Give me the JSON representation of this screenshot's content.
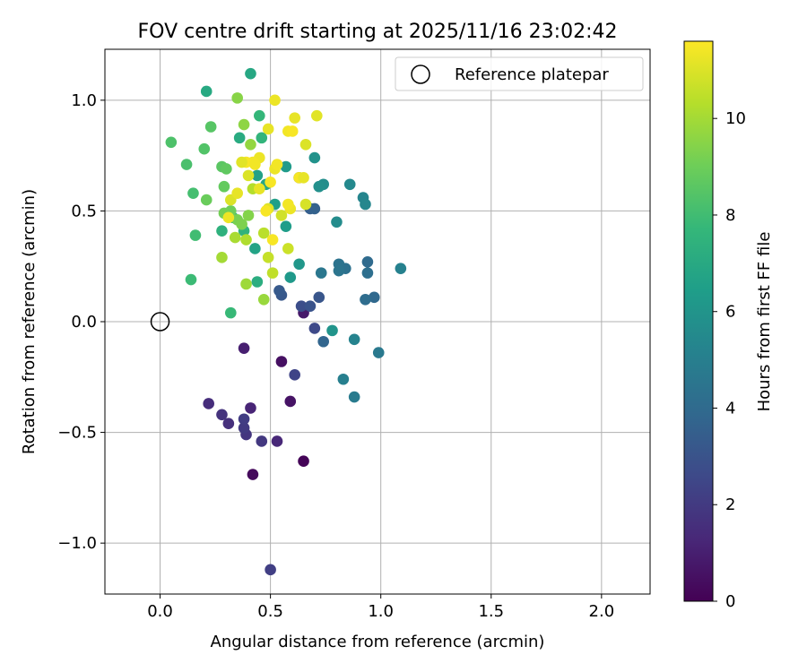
{
  "chart_data": {
    "type": "scatter",
    "title": "FOV centre drift starting at 2025/11/16 23:02:42",
    "xlabel": "Angular distance from reference (arcmin)",
    "ylabel": "Rotation from reference (arcmin)",
    "xlim": [
      -0.25,
      2.22
    ],
    "ylim": [
      -1.23,
      1.23
    ],
    "xticks": [
      0.0,
      0.5,
      1.0,
      1.5,
      2.0
    ],
    "xtick_labels": [
      "0.0",
      "0.5",
      "1.0",
      "1.5",
      "2.0"
    ],
    "yticks": [
      -1.0,
      -0.5,
      0.0,
      0.5,
      1.0
    ],
    "ytick_labels": [
      "−1.0",
      "−0.5",
      "0.0",
      "0.5",
      "1.0"
    ],
    "grid": true,
    "legend": {
      "position": "top-right",
      "label": "Reference platepar"
    },
    "reference_point": {
      "x": 0.0,
      "y": 0.0
    },
    "colorbar": {
      "label": "Hours from first FF file",
      "range": [
        0,
        11.6
      ],
      "ticks": [
        0,
        2,
        4,
        6,
        8,
        10
      ],
      "tick_labels": [
        "0",
        "2",
        "4",
        "6",
        "8",
        "10"
      ],
      "colormap": [
        "#440154",
        "#482878",
        "#3e4989",
        "#31688e",
        "#26828e",
        "#1f9e89",
        "#35b779",
        "#6ece58",
        "#b5de2b",
        "#fde725"
      ]
    },
    "points": [
      {
        "x": 0.65,
        "y": -0.63,
        "h": 0.1
      },
      {
        "x": 0.42,
        "y": -0.69,
        "h": 0.3
      },
      {
        "x": 0.55,
        "y": -0.18,
        "h": 0.5
      },
      {
        "x": 0.59,
        "y": -0.36,
        "h": 0.6
      },
      {
        "x": 0.65,
        "y": 0.04,
        "h": 0.8
      },
      {
        "x": 0.38,
        "y": -0.12,
        "h": 1.0
      },
      {
        "x": 0.41,
        "y": -0.39,
        "h": 1.2
      },
      {
        "x": 0.53,
        "y": -0.54,
        "h": 1.3
      },
      {
        "x": 0.22,
        "y": -0.37,
        "h": 1.5
      },
      {
        "x": 0.31,
        "y": -0.46,
        "h": 1.6
      },
      {
        "x": 0.28,
        "y": -0.42,
        "h": 1.7
      },
      {
        "x": 0.39,
        "y": -0.51,
        "h": 1.8
      },
      {
        "x": 0.46,
        "y": -0.54,
        "h": 1.9
      },
      {
        "x": 0.38,
        "y": -0.48,
        "h": 2.0
      },
      {
        "x": 0.38,
        "y": -0.44,
        "h": 2.1
      },
      {
        "x": 0.5,
        "y": -1.12,
        "h": 2.2
      },
      {
        "x": 0.61,
        "y": -0.24,
        "h": 2.4
      },
      {
        "x": 0.7,
        "y": -0.03,
        "h": 2.6
      },
      {
        "x": 0.64,
        "y": 0.07,
        "h": 2.8
      },
      {
        "x": 0.68,
        "y": 0.07,
        "h": 3.0
      },
      {
        "x": 0.72,
        "y": 0.11,
        "h": 3.1
      },
      {
        "x": 0.55,
        "y": 0.12,
        "h": 3.2
      },
      {
        "x": 0.54,
        "y": 0.14,
        "h": 3.3
      },
      {
        "x": 0.63,
        "y": 0.65,
        "h": 3.4
      },
      {
        "x": 0.68,
        "y": 0.51,
        "h": 3.5
      },
      {
        "x": 0.7,
        "y": 0.51,
        "h": 3.6
      },
      {
        "x": 0.74,
        "y": -0.09,
        "h": 3.8
      },
      {
        "x": 0.97,
        "y": 0.11,
        "h": 3.9
      },
      {
        "x": 0.94,
        "y": 0.27,
        "h": 4.0
      },
      {
        "x": 0.93,
        "y": 0.1,
        "h": 4.1
      },
      {
        "x": 0.94,
        "y": 0.22,
        "h": 4.2
      },
      {
        "x": 0.84,
        "y": 0.24,
        "h": 4.3
      },
      {
        "x": 0.81,
        "y": 0.26,
        "h": 4.4
      },
      {
        "x": 0.81,
        "y": 0.23,
        "h": 4.5
      },
      {
        "x": 0.73,
        "y": 0.22,
        "h": 4.6
      },
      {
        "x": 0.99,
        "y": -0.14,
        "h": 4.7
      },
      {
        "x": 0.88,
        "y": -0.34,
        "h": 4.8
      },
      {
        "x": 0.83,
        "y": -0.26,
        "h": 5.0
      },
      {
        "x": 1.09,
        "y": 0.24,
        "h": 5.1
      },
      {
        "x": 0.88,
        "y": -0.08,
        "h": 5.2
      },
      {
        "x": 0.92,
        "y": 0.56,
        "h": 5.3
      },
      {
        "x": 0.93,
        "y": 0.53,
        "h": 5.4
      },
      {
        "x": 0.86,
        "y": 0.62,
        "h": 5.5
      },
      {
        "x": 0.8,
        "y": 0.45,
        "h": 5.6
      },
      {
        "x": 0.74,
        "y": 0.62,
        "h": 5.7
      },
      {
        "x": 0.72,
        "y": 0.61,
        "h": 5.8
      },
      {
        "x": 0.7,
        "y": 0.74,
        "h": 5.9
      },
      {
        "x": 0.78,
        "y": -0.04,
        "h": 6.0
      },
      {
        "x": 0.63,
        "y": 0.26,
        "h": 6.1
      },
      {
        "x": 0.59,
        "y": 0.2,
        "h": 6.2
      },
      {
        "x": 0.57,
        "y": 0.7,
        "h": 6.3
      },
      {
        "x": 0.57,
        "y": 0.43,
        "h": 6.4
      },
      {
        "x": 0.52,
        "y": 0.53,
        "h": 6.5
      },
      {
        "x": 0.44,
        "y": 0.66,
        "h": 6.6
      },
      {
        "x": 0.43,
        "y": 0.33,
        "h": 6.7
      },
      {
        "x": 0.48,
        "y": 0.62,
        "h": 6.8
      },
      {
        "x": 0.41,
        "y": 1.12,
        "h": 6.9
      },
      {
        "x": 0.21,
        "y": 1.04,
        "h": 7.0
      },
      {
        "x": 0.36,
        "y": 0.83,
        "h": 7.1
      },
      {
        "x": 0.44,
        "y": 0.18,
        "h": 7.2
      },
      {
        "x": 0.33,
        "y": 0.47,
        "h": 7.3
      },
      {
        "x": 0.28,
        "y": 0.41,
        "h": 7.4
      },
      {
        "x": 0.38,
        "y": 0.41,
        "h": 7.5
      },
      {
        "x": 0.46,
        "y": 0.83,
        "h": 7.6
      },
      {
        "x": 0.45,
        "y": 0.93,
        "h": 7.7
      },
      {
        "x": 0.32,
        "y": 0.04,
        "h": 7.8
      },
      {
        "x": 0.14,
        "y": 0.19,
        "h": 7.9
      },
      {
        "x": 0.16,
        "y": 0.39,
        "h": 8.0
      },
      {
        "x": 0.15,
        "y": 0.58,
        "h": 8.1
      },
      {
        "x": 0.12,
        "y": 0.71,
        "h": 8.2
      },
      {
        "x": 0.05,
        "y": 0.81,
        "h": 8.3
      },
      {
        "x": 0.2,
        "y": 0.78,
        "h": 8.4
      },
      {
        "x": 0.23,
        "y": 0.88,
        "h": 8.5
      },
      {
        "x": 0.28,
        "y": 0.7,
        "h": 8.6
      },
      {
        "x": 0.3,
        "y": 0.69,
        "h": 8.7
      },
      {
        "x": 0.29,
        "y": 0.61,
        "h": 8.8
      },
      {
        "x": 0.21,
        "y": 0.55,
        "h": 8.9
      },
      {
        "x": 0.32,
        "y": 0.5,
        "h": 9.0
      },
      {
        "x": 0.29,
        "y": 0.49,
        "h": 9.1
      },
      {
        "x": 0.35,
        "y": 0.46,
        "h": 9.2
      },
      {
        "x": 0.37,
        "y": 0.44,
        "h": 9.3
      },
      {
        "x": 0.4,
        "y": 0.48,
        "h": 9.4
      },
      {
        "x": 0.35,
        "y": 1.01,
        "h": 9.5
      },
      {
        "x": 0.38,
        "y": 0.89,
        "h": 9.6
      },
      {
        "x": 0.41,
        "y": 0.8,
        "h": 9.7
      },
      {
        "x": 0.47,
        "y": 0.1,
        "h": 9.8
      },
      {
        "x": 0.39,
        "y": 0.17,
        "h": 9.9
      },
      {
        "x": 0.28,
        "y": 0.29,
        "h": 10.0
      },
      {
        "x": 0.34,
        "y": 0.38,
        "h": 10.1
      },
      {
        "x": 0.39,
        "y": 0.37,
        "h": 10.2
      },
      {
        "x": 0.42,
        "y": 0.6,
        "h": 10.3
      },
      {
        "x": 0.47,
        "y": 0.4,
        "h": 10.4
      },
      {
        "x": 0.51,
        "y": 0.22,
        "h": 10.5
      },
      {
        "x": 0.49,
        "y": 0.29,
        "h": 10.6
      },
      {
        "x": 0.58,
        "y": 0.33,
        "h": 10.7
      },
      {
        "x": 0.55,
        "y": 0.48,
        "h": 10.8
      },
      {
        "x": 0.66,
        "y": 0.53,
        "h": 10.9
      },
      {
        "x": 0.66,
        "y": 0.8,
        "h": 11.0
      },
      {
        "x": 0.71,
        "y": 0.93,
        "h": 11.1
      },
      {
        "x": 0.61,
        "y": 0.92,
        "h": 11.2
      },
      {
        "x": 0.52,
        "y": 1.0,
        "h": 11.3
      },
      {
        "x": 0.58,
        "y": 0.86,
        "h": 11.4
      },
      {
        "x": 0.6,
        "y": 0.86,
        "h": 11.5
      },
      {
        "x": 0.49,
        "y": 0.87,
        "h": 11.2
      },
      {
        "x": 0.45,
        "y": 0.74,
        "h": 11.3
      },
      {
        "x": 0.42,
        "y": 0.72,
        "h": 11.4
      },
      {
        "x": 0.39,
        "y": 0.72,
        "h": 11.5
      },
      {
        "x": 0.37,
        "y": 0.72,
        "h": 11.1
      },
      {
        "x": 0.4,
        "y": 0.66,
        "h": 11.0
      },
      {
        "x": 0.5,
        "y": 0.63,
        "h": 11.5
      },
      {
        "x": 0.45,
        "y": 0.6,
        "h": 11.2
      },
      {
        "x": 0.52,
        "y": 0.69,
        "h": 11.3
      },
      {
        "x": 0.53,
        "y": 0.71,
        "h": 11.4
      },
      {
        "x": 0.63,
        "y": 0.65,
        "h": 11.5
      },
      {
        "x": 0.65,
        "y": 0.65,
        "h": 11.2
      },
      {
        "x": 0.59,
        "y": 0.51,
        "h": 11.3
      },
      {
        "x": 0.58,
        "y": 0.53,
        "h": 11.4
      },
      {
        "x": 0.49,
        "y": 0.51,
        "h": 11.1
      },
      {
        "x": 0.51,
        "y": 0.37,
        "h": 11.5
      },
      {
        "x": 0.31,
        "y": 0.47,
        "h": 11.3
      },
      {
        "x": 0.32,
        "y": 0.55,
        "h": 11.0
      },
      {
        "x": 0.35,
        "y": 0.58,
        "h": 11.2
      },
      {
        "x": 0.43,
        "y": 0.71,
        "h": 11.4
      },
      {
        "x": 0.48,
        "y": 0.5,
        "h": 11.5
      }
    ]
  }
}
